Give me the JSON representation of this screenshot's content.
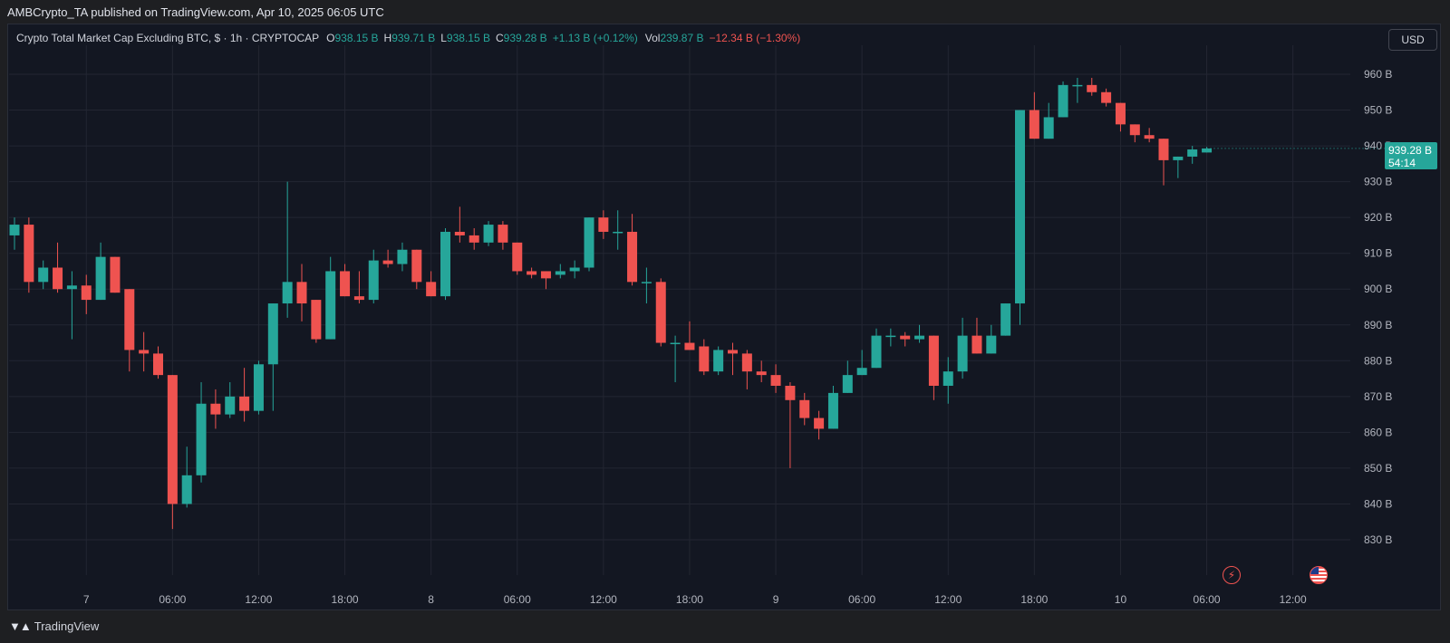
{
  "header": {
    "published_by": "AMBCrypto_TA published on TradingView.com, Apr 10, 2025 06:05 UTC"
  },
  "legend": {
    "symbol": "Crypto Total Market Cap Excluding BTC, $ · 1h · CRYPTOCAP",
    "o_label": "O",
    "o_value": "938.15 B",
    "h_label": "H",
    "h_value": "939.71 B",
    "l_label": "L",
    "l_value": "938.15 B",
    "c_label": "C",
    "c_value": "939.28 B",
    "change": "+1.13 B (+0.12%)",
    "vol_label": "Vol",
    "vol_value": "239.87 B",
    "vol_change": "−12.34 B (−1.30%)"
  },
  "currency_button": "USD",
  "last_price": {
    "price": "939.28 B",
    "countdown": "54:14"
  },
  "footer": {
    "brand": "TradingView"
  },
  "colors": {
    "up": "#26a69a",
    "down": "#ef5350",
    "background": "#131722",
    "grid": "#232632"
  },
  "icons": {
    "events": "bolt-icon",
    "country": "us-flag-icon",
    "brand": "tradingview-logo-icon"
  },
  "chart_data": {
    "type": "candlestick",
    "ylim": [
      825,
      965
    ],
    "y_ticks": [
      830,
      840,
      850,
      860,
      870,
      880,
      890,
      900,
      910,
      920,
      930,
      940,
      950,
      960
    ],
    "y_tick_labels": [
      "830 B",
      "840 B",
      "850 B",
      "860 B",
      "870 B",
      "880 B",
      "890 B",
      "900 B",
      "910 B",
      "920 B",
      "930 B",
      "940 B",
      "950 B",
      "960 B"
    ],
    "x_tick_labels": [
      {
        "label": "7",
        "index": 5
      },
      {
        "label": "06:00",
        "index": 11
      },
      {
        "label": "12:00",
        "index": 17
      },
      {
        "label": "18:00",
        "index": 23
      },
      {
        "label": "8",
        "index": 29
      },
      {
        "label": "06:00",
        "index": 35
      },
      {
        "label": "12:00",
        "index": 41
      },
      {
        "label": "18:00",
        "index": 47
      },
      {
        "label": "9",
        "index": 53
      },
      {
        "label": "06:00",
        "index": 59
      },
      {
        "label": "12:00",
        "index": 65
      },
      {
        "label": "18:00",
        "index": 71
      },
      {
        "label": "10",
        "index": 77
      },
      {
        "label": "06:00",
        "index": 83
      },
      {
        "label": "12:00",
        "index": 89
      }
    ],
    "candles": [
      {
        "o": 915,
        "h": 920,
        "l": 911,
        "c": 918
      },
      {
        "o": 918,
        "h": 920,
        "l": 899,
        "c": 902
      },
      {
        "o": 902,
        "h": 908,
        "l": 900,
        "c": 906
      },
      {
        "o": 906,
        "h": 913,
        "l": 899,
        "c": 900
      },
      {
        "o": 900,
        "h": 905,
        "l": 886,
        "c": 901
      },
      {
        "o": 901,
        "h": 904,
        "l": 893,
        "c": 897
      },
      {
        "o": 897,
        "h": 913,
        "l": 897,
        "c": 909
      },
      {
        "o": 909,
        "h": 909,
        "l": 899,
        "c": 899
      },
      {
        "o": 900,
        "h": 900,
        "l": 877,
        "c": 883
      },
      {
        "o": 883,
        "h": 888,
        "l": 877,
        "c": 882
      },
      {
        "o": 882,
        "h": 884,
        "l": 875,
        "c": 876
      },
      {
        "o": 876,
        "h": 876,
        "l": 833,
        "c": 840
      },
      {
        "o": 840,
        "h": 856,
        "l": 839,
        "c": 848
      },
      {
        "o": 848,
        "h": 874,
        "l": 846,
        "c": 868
      },
      {
        "o": 868,
        "h": 872,
        "l": 861,
        "c": 865
      },
      {
        "o": 865,
        "h": 874,
        "l": 864,
        "c": 870
      },
      {
        "o": 870,
        "h": 878,
        "l": 863,
        "c": 866
      },
      {
        "o": 866,
        "h": 880,
        "l": 865,
        "c": 879
      },
      {
        "o": 879,
        "h": 896,
        "l": 866,
        "c": 896
      },
      {
        "o": 896,
        "h": 930,
        "l": 892,
        "c": 902
      },
      {
        "o": 902,
        "h": 907,
        "l": 891,
        "c": 896
      },
      {
        "o": 897,
        "h": 897,
        "l": 885,
        "c": 886
      },
      {
        "o": 886,
        "h": 909,
        "l": 886,
        "c": 905
      },
      {
        "o": 905,
        "h": 907,
        "l": 898,
        "c": 898
      },
      {
        "o": 898,
        "h": 905,
        "l": 896,
        "c": 897
      },
      {
        "o": 897,
        "h": 911,
        "l": 896,
        "c": 908
      },
      {
        "o": 908,
        "h": 911,
        "l": 906,
        "c": 907
      },
      {
        "o": 907,
        "h": 913,
        "l": 905,
        "c": 911
      },
      {
        "o": 911,
        "h": 911,
        "l": 900,
        "c": 902
      },
      {
        "o": 902,
        "h": 905,
        "l": 898,
        "c": 898
      },
      {
        "o": 898,
        "h": 917,
        "l": 897,
        "c": 916
      },
      {
        "o": 916,
        "h": 923,
        "l": 913,
        "c": 915
      },
      {
        "o": 915,
        "h": 917,
        "l": 911,
        "c": 913
      },
      {
        "o": 913,
        "h": 919,
        "l": 912,
        "c": 918
      },
      {
        "o": 918,
        "h": 919,
        "l": 911,
        "c": 913
      },
      {
        "o": 913,
        "h": 913,
        "l": 904,
        "c": 905
      },
      {
        "o": 905,
        "h": 906,
        "l": 903,
        "c": 904
      },
      {
        "o": 905,
        "h": 905,
        "l": 900,
        "c": 903
      },
      {
        "o": 904,
        "h": 907,
        "l": 903,
        "c": 905
      },
      {
        "o": 905,
        "h": 908,
        "l": 903,
        "c": 906
      },
      {
        "o": 906,
        "h": 920,
        "l": 905,
        "c": 920
      },
      {
        "o": 920,
        "h": 922,
        "l": 914,
        "c": 916
      },
      {
        "o": 916,
        "h": 922,
        "l": 911,
        "c": 916
      },
      {
        "o": 916,
        "h": 921,
        "l": 901,
        "c": 902
      },
      {
        "o": 902,
        "h": 906,
        "l": 896,
        "c": 902
      },
      {
        "o": 902,
        "h": 903,
        "l": 884,
        "c": 885
      },
      {
        "o": 885,
        "h": 887,
        "l": 874,
        "c": 885
      },
      {
        "o": 885,
        "h": 891,
        "l": 883,
        "c": 883
      },
      {
        "o": 884,
        "h": 886,
        "l": 876,
        "c": 877
      },
      {
        "o": 877,
        "h": 884,
        "l": 876,
        "c": 883
      },
      {
        "o": 883,
        "h": 885,
        "l": 876,
        "c": 882
      },
      {
        "o": 882,
        "h": 883,
        "l": 872,
        "c": 877
      },
      {
        "o": 877,
        "h": 880,
        "l": 874,
        "c": 876
      },
      {
        "o": 876,
        "h": 879,
        "l": 871,
        "c": 873
      },
      {
        "o": 873,
        "h": 874,
        "l": 850,
        "c": 869
      },
      {
        "o": 869,
        "h": 871,
        "l": 862,
        "c": 864
      },
      {
        "o": 864,
        "h": 866,
        "l": 858,
        "c": 861
      },
      {
        "o": 861,
        "h": 873,
        "l": 861,
        "c": 871
      },
      {
        "o": 871,
        "h": 880,
        "l": 871,
        "c": 876
      },
      {
        "o": 876,
        "h": 883,
        "l": 876,
        "c": 878
      },
      {
        "o": 878,
        "h": 889,
        "l": 878,
        "c": 887
      },
      {
        "o": 887,
        "h": 889,
        "l": 884,
        "c": 887
      },
      {
        "o": 887,
        "h": 888,
        "l": 884,
        "c": 886
      },
      {
        "o": 886,
        "h": 890,
        "l": 885,
        "c": 887
      },
      {
        "o": 887,
        "h": 887,
        "l": 869,
        "c": 873
      },
      {
        "o": 873,
        "h": 881,
        "l": 868,
        "c": 877
      },
      {
        "o": 877,
        "h": 892,
        "l": 875,
        "c": 887
      },
      {
        "o": 887,
        "h": 892,
        "l": 882,
        "c": 882
      },
      {
        "o": 882,
        "h": 890,
        "l": 882,
        "c": 887
      },
      {
        "o": 887,
        "h": 896,
        "l": 887,
        "c": 896
      },
      {
        "o": 896,
        "h": 950,
        "l": 890,
        "c": 950
      },
      {
        "o": 950,
        "h": 955,
        "l": 942,
        "c": 942
      },
      {
        "o": 942,
        "h": 952,
        "l": 942,
        "c": 948
      },
      {
        "o": 948,
        "h": 958,
        "l": 948,
        "c": 957
      },
      {
        "o": 957,
        "h": 959,
        "l": 952,
        "c": 957
      },
      {
        "o": 957,
        "h": 959,
        "l": 954,
        "c": 955
      },
      {
        "o": 955,
        "h": 956,
        "l": 951,
        "c": 952
      },
      {
        "o": 952,
        "h": 952,
        "l": 944,
        "c": 946
      },
      {
        "o": 946,
        "h": 946,
        "l": 941,
        "c": 943
      },
      {
        "o": 943,
        "h": 945,
        "l": 941,
        "c": 942
      },
      {
        "o": 942,
        "h": 942,
        "l": 929,
        "c": 936
      },
      {
        "o": 936,
        "h": 937,
        "l": 931,
        "c": 937
      },
      {
        "o": 937,
        "h": 940,
        "l": 935,
        "c": 939
      },
      {
        "o": 938.15,
        "h": 939.71,
        "l": 938.15,
        "c": 939.28
      }
    ]
  }
}
